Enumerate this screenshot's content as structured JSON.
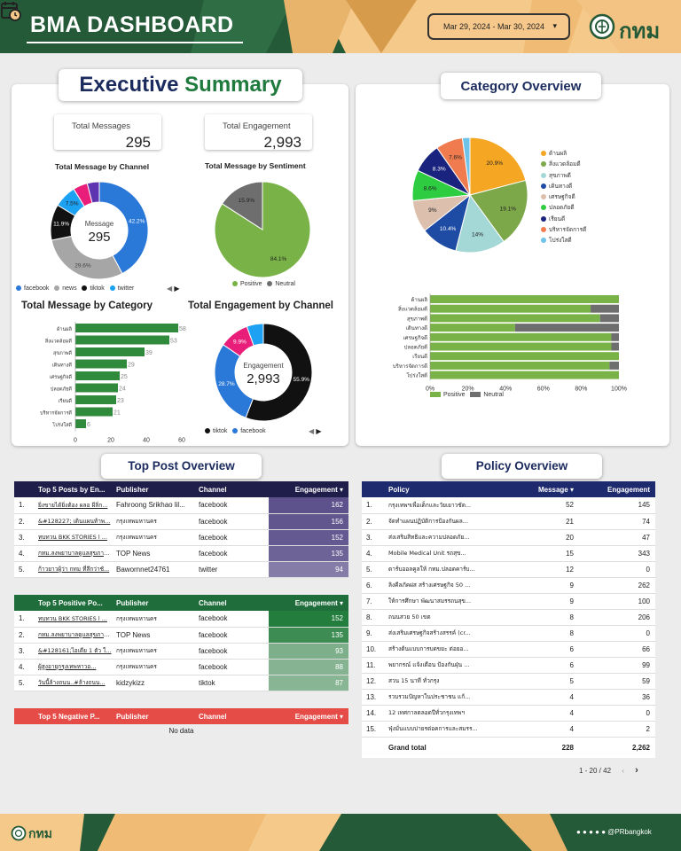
{
  "header": {
    "title": "BMA DASHBOARD",
    "date_range": "Mar 29, 2024 - Mar 30, 2024",
    "logo_text": "กทม"
  },
  "exec": {
    "title_a": "Executive",
    "title_b": "Summary",
    "kpi": [
      {
        "label": "Total Messages",
        "value": "295"
      },
      {
        "label": "Total Engagement",
        "value": "2,993"
      }
    ],
    "channel": {
      "title": "Total Message by Channel",
      "center_label": "Message",
      "center_value": "295",
      "slices": [
        {
          "name": "facebook",
          "pct": 42.2,
          "color": "#2a78d8"
        },
        {
          "name": "news",
          "pct": 29.6,
          "color": "#a6a6a6"
        },
        {
          "name": "tiktok",
          "pct": 11.9,
          "color": "#111111"
        },
        {
          "name": "twitter",
          "pct": 7.5,
          "color": "#1da1f2"
        },
        {
          "name": "",
          "pct": 4.8,
          "color": "#e91e7a"
        },
        {
          "name": "",
          "pct": 4.0,
          "color": "#5e35b1"
        }
      ],
      "slice_labels": [
        "42.2%",
        "29.6%",
        "11.9%",
        "7.5%"
      ]
    },
    "sentiment": {
      "title": "Total Message by Sentiment",
      "slices": [
        {
          "name": "Positive",
          "pct": 84.1,
          "color": "#79b347"
        },
        {
          "name": "Neutral",
          "pct": 15.9,
          "color": "#6e6e6e"
        }
      ],
      "slice_labels": [
        "84.1%",
        "15.9%"
      ]
    },
    "category": {
      "title": "Total Message by Category",
      "labels": [
        "ด้านผลิ",
        "สิ่งแวดล้อมดี",
        "สุขภาพดี",
        "เดินทางดี",
        "เศรษฐกิจดี",
        "ปลอดภัยดี",
        "เรียนดี",
        "บริหารจัดการดี",
        "โปร่งใสดี"
      ],
      "values": [
        58,
        53,
        39,
        29,
        25,
        24,
        23,
        21,
        6
      ],
      "ticks": [
        "0",
        "20",
        "40",
        "60"
      ],
      "xmax": 60,
      "color": "#2f8a3b"
    },
    "engagement": {
      "title": "Total Engagement by Channel",
      "center_label": "Engagement",
      "center_value": "2,993",
      "slices": [
        {
          "name": "tiktok",
          "pct": 55.9,
          "color": "#111111"
        },
        {
          "name": "facebook",
          "pct": 28.7,
          "color": "#2a78d8"
        },
        {
          "name": "",
          "pct": 9.9,
          "color": "#e91e7a"
        },
        {
          "name": "",
          "pct": 5.5,
          "color": "#1da1f2"
        }
      ],
      "slice_labels": [
        "55.9%",
        "28.7%",
        "9.9%"
      ]
    }
  },
  "category": {
    "title": "Category Overview",
    "pie": [
      {
        "name": "ด้านผลิ",
        "pct": 20.9,
        "color": "#f5a623"
      },
      {
        "name": "สิ่งแวดล้อมดี",
        "pct": 19.1,
        "color": "#7da84a"
      },
      {
        "name": "สุขภาพดี",
        "pct": 14,
        "color": "#a4d8d6"
      },
      {
        "name": "เดินทางดี",
        "pct": 10.4,
        "color": "#1e4ba3"
      },
      {
        "name": "เศรษฐกิจดี",
        "pct": 9,
        "color": "#dcbfad"
      },
      {
        "name": "ปลอดภัยดี",
        "pct": 8.6,
        "color": "#2ecc40"
      },
      {
        "name": "เรียนดี",
        "pct": 8.3,
        "color": "#1a237e"
      },
      {
        "name": "บริหารจัดการดี",
        "pct": 7.6,
        "color": "#f07b4f"
      },
      {
        "name": "โปร่งใสดี",
        "pct": 2.1,
        "color": "#6fc3e8"
      }
    ],
    "pie_labels": [
      "20.9%",
      "19.1%",
      "14%",
      "10.4%",
      "9%",
      "8.6%",
      "8.3%",
      "7.6%"
    ],
    "bars": {
      "labels": [
        "ด้านผลิ",
        "สิ่งแวดล้อมดี",
        "สุขภาพดี",
        "เดินทางดี",
        "เศรษฐกิจดี",
        "ปลอดภัยดี",
        "เรียนดี",
        "บริหารจัดการดี",
        "โปร่งใสดี"
      ],
      "positive": [
        100,
        85,
        90,
        45,
        96,
        96,
        100,
        95,
        100
      ],
      "ticks": [
        "0%",
        "20%",
        "40%",
        "60%",
        "80%",
        "100%"
      ],
      "legend": [
        "Positive",
        "Neutral"
      ],
      "colors": [
        "#79b347",
        "#6e6e6e"
      ]
    }
  },
  "top_post": {
    "title": "Top Post Overview",
    "t1": {
      "headers": [
        "Top 5 Posts by En...",
        "Publisher",
        "Channel",
        "Engagement ▾"
      ],
      "rows": [
        [
          "1.",
          "ยิ่งขายได้ยิ่งต้อง ผลอ ผีลิ่ก...",
          "Fahroong Srikhao lil...",
          "facebook",
          "162"
        ],
        [
          "2.",
          "&#128227; เดินแผนท้าพ...",
          "กรุงเทพมหานคร",
          "facebook",
          "156"
        ],
        [
          "3.",
          "ทบทวน BKK STORIES l ...",
          "กรุงเทพมหานคร",
          "facebook",
          "152"
        ],
        [
          "4.",
          "กทม.ลงพยาบาลดูแลสุขภาพศรีเ...",
          "TOP News",
          "facebook",
          "135"
        ],
        [
          "5.",
          "ก้าวยาวผู้ว่า กทม ที่ลึกว่าชั...",
          "Bawornnet24761",
          "twitter",
          "94"
        ]
      ]
    },
    "t2": {
      "headers": [
        "Top 5 Positive Po...",
        "Publisher",
        "Channel",
        "Engagement ▾"
      ],
      "rows": [
        [
          "1.",
          "ทบทวน BKK STORIES l ...",
          "กรุงเทพมหานคร",
          "facebook",
          "152"
        ],
        [
          "2.",
          "กทม.ลงพยาบาลดูแลสุขภาพ...",
          "TOP News",
          "facebook",
          "135"
        ],
        [
          "3.",
          "&#128161;ไอเดีย 1 ตัว ใ...",
          "กรุงเทพมหานคร",
          "facebook",
          "93"
        ],
        [
          "4.",
          "ผู้สูงอายุกรุงเทพหาวอ...",
          "กรุงเทพมหานคร",
          "facebook",
          "88"
        ],
        [
          "5.",
          "วันนี้ล้างถนน..#ล้างถนน...",
          "kidzykizz",
          "tiktok",
          "87"
        ]
      ]
    },
    "t3": {
      "headers": [
        "Top 5 Negative P...",
        "Publisher",
        "Channel",
        "Engagement ▾"
      ],
      "empty": "No data"
    }
  },
  "policy": {
    "title": "Policy Overview",
    "headers": [
      "Policy",
      "Message ▾",
      "Engagement"
    ],
    "rows": [
      [
        "1.",
        "กรุงเทพฯเพื่อเด็กและวัยเยาวชัด...",
        "52",
        "145"
      ],
      [
        "2.",
        "จัดทำแผนปฏิบัติการป้องกันผล...",
        "21",
        "74"
      ],
      [
        "3.",
        "ส่งเสริมสิทธิและความปลอดภัย...",
        "20",
        "47"
      ],
      [
        "4.",
        "Mobile Medical Unit รถสุข...",
        "15",
        "343"
      ],
      [
        "5.",
        "ดาร์บออลคูลให้ กทม.ปลอดคาร์บ...",
        "12",
        "0"
      ],
      [
        "6.",
        "ลิงคีลภัคผ่ส สร้างเศรษฐกิจ 50 ...",
        "9",
        "262"
      ],
      [
        "7.",
        "ให้การศึกษา พัฒนาสมรรถนสุข...",
        "9",
        "100"
      ],
      [
        "8.",
        "ถนนสวย 50 เขต",
        "8",
        "206"
      ],
      [
        "9.",
        "ส่งเสริมเศรษฐกิจสร้างสรรค์ (cr...",
        "8",
        "0"
      ],
      [
        "10.",
        "สร้างต้นแบบการบดขยะ ต่อยอ...",
        "6",
        "66"
      ],
      [
        "11.",
        "พยากรณ์ แจ้งเตือน ป้องกันฝุ่น ...",
        "6",
        "99"
      ],
      [
        "12.",
        "สวน 15 นาที ทั่วกรุง",
        "5",
        "59"
      ],
      [
        "13.",
        "รวบรวมปัญหาในประชาชน แก้...",
        "4",
        "36"
      ],
      [
        "14.",
        "12 เทศกาลตลอดปีทั่วกรุงเทพฯ",
        "4",
        "0"
      ],
      [
        "15.",
        "ฟุ่งมั่นแบบบ่ายรต่อคการและสมรร...",
        "4",
        "2"
      ]
    ],
    "total_label": "Grand total",
    "total_message": "228",
    "total_engagement": "2,262",
    "pager": "1 - 20 / 42"
  },
  "footer": {
    "logo_text": "กทม",
    "social": "@PRbangkok"
  }
}
